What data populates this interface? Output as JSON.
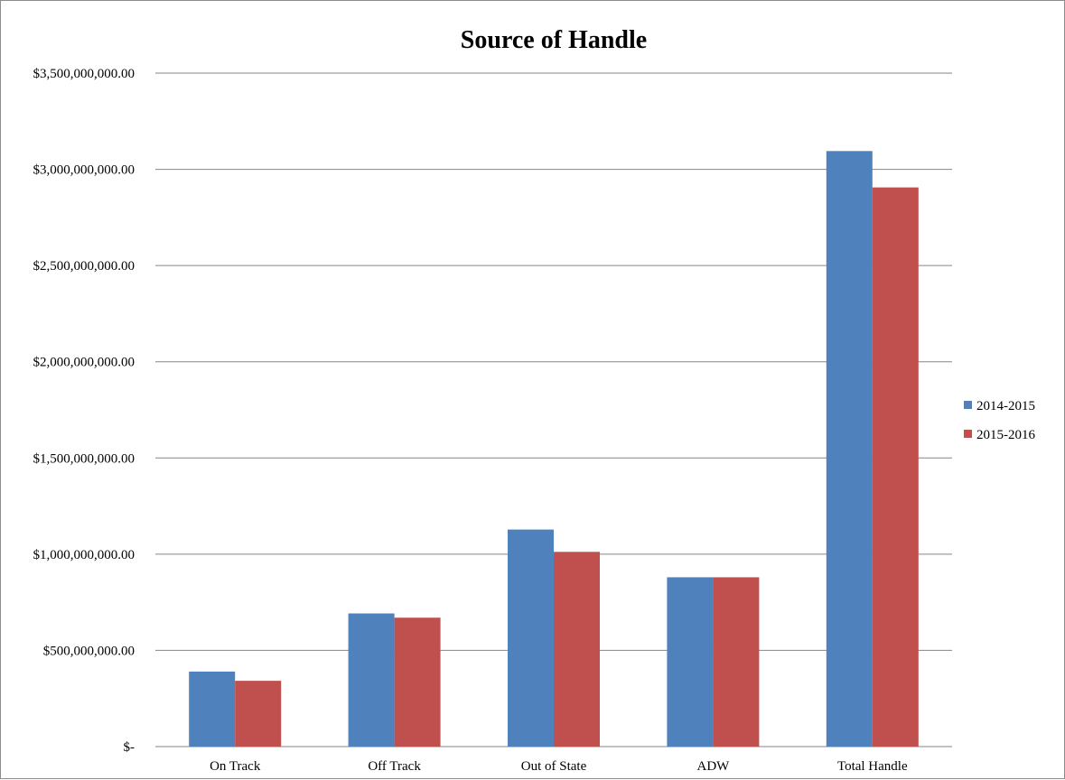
{
  "chart_data": {
    "type": "bar",
    "title": "Source of Handle",
    "xlabel": "",
    "ylabel": "",
    "categories": [
      "On Track",
      "Off Track",
      "Out of State",
      "ADW",
      "Total Handle"
    ],
    "series": [
      {
        "name": "2014-2015",
        "color": "#4f81bd",
        "values": [
          390000000,
          692000000,
          1128000000,
          880000000,
          3095000000
        ]
      },
      {
        "name": "2015-2016",
        "color": "#c0504d",
        "values": [
          342000000,
          670000000,
          1012000000,
          880000000,
          2906000000
        ]
      }
    ],
    "ylim": [
      0,
      3500000000
    ],
    "yticks": [
      0,
      500000000,
      1000000000,
      1500000000,
      2000000000,
      2500000000,
      3000000000,
      3500000000
    ],
    "ytick_labels": [
      "$-",
      "$500,000,000.00",
      "$1,000,000,000.00",
      "$1,500,000,000.00",
      "$2,000,000,000.00",
      "$2,500,000,000.00",
      "$3,000,000,000.00",
      "$3,500,000,000.00"
    ],
    "grid": true,
    "legend_position": "right"
  }
}
